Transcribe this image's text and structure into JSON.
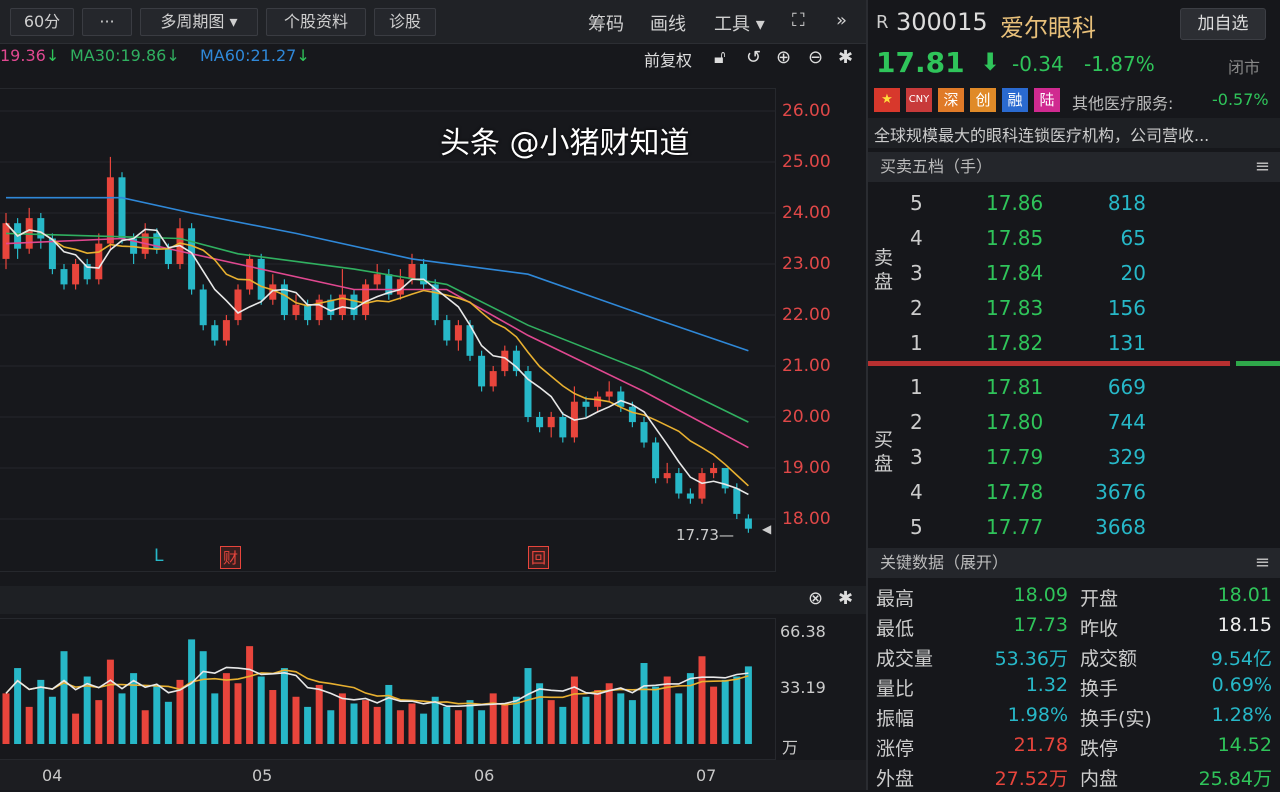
{
  "toolbar": {
    "period": "60分",
    "more": "···",
    "multi": "多周期图",
    "profile": "个股资料",
    "diagnose": "诊股",
    "chips": "筹码",
    "draw": "画线",
    "tools": "工具",
    "expand_icon": "fullscreen-icon",
    "collapse_icon": "double-chevron-right-icon"
  },
  "ma_legend": {
    "ma20": "19.36",
    "ma30": "MA30:19.86",
    "ma60": "MA60:21.27",
    "adjust": "前复权"
  },
  "colors": {
    "up": "#e8453c",
    "down": "#27b8c8",
    "ma5": "#e8e8e8",
    "ma10": "#e8b030",
    "ma20": "#e04890",
    "ma30": "#30b060",
    "ma60": "#2f88d8",
    "green": "#2fc45a"
  },
  "price_axis": [
    "26.00",
    "25.00",
    "24.00",
    "23.00",
    "22.00",
    "21.00",
    "20.00",
    "19.00",
    "18.00"
  ],
  "last_low_label": "17.73",
  "markers": {
    "l": "L",
    "cai": "财",
    "hui": "回"
  },
  "volume_axis": {
    "top": "66.38",
    "mid": "33.19",
    "unit": "万"
  },
  "date_axis": [
    "04",
    "05",
    "06",
    "07"
  ],
  "candles": [
    [
      23.1,
      23.8,
      24.0,
      22.9
    ],
    [
      23.8,
      23.3,
      23.9,
      23.1
    ],
    [
      23.3,
      23.9,
      24.1,
      23.2
    ],
    [
      23.9,
      23.5,
      24.0,
      23.3
    ],
    [
      23.5,
      22.9,
      23.6,
      22.8
    ],
    [
      22.9,
      22.6,
      23.0,
      22.5
    ],
    [
      22.6,
      23.0,
      23.1,
      22.5
    ],
    [
      23.0,
      22.7,
      23.1,
      22.6
    ],
    [
      22.7,
      23.4,
      23.6,
      22.6
    ],
    [
      23.4,
      24.7,
      25.1,
      23.3
    ],
    [
      24.7,
      23.5,
      24.8,
      23.4
    ],
    [
      23.5,
      23.2,
      23.6,
      23.0
    ],
    [
      23.2,
      23.6,
      23.8,
      23.1
    ],
    [
      23.6,
      23.3,
      23.7,
      23.2
    ],
    [
      23.3,
      23.0,
      23.4,
      22.9
    ],
    [
      23.0,
      23.7,
      23.9,
      22.9
    ],
    [
      23.7,
      22.5,
      23.8,
      22.4
    ],
    [
      22.5,
      21.8,
      22.6,
      21.7
    ],
    [
      21.8,
      21.5,
      21.9,
      21.4
    ],
    [
      21.5,
      21.9,
      22.0,
      21.4
    ],
    [
      21.9,
      22.5,
      22.6,
      21.8
    ],
    [
      22.5,
      23.1,
      23.2,
      22.4
    ],
    [
      23.1,
      22.3,
      23.2,
      22.2
    ],
    [
      22.3,
      22.6,
      22.8,
      22.2
    ],
    [
      22.6,
      22.0,
      22.7,
      21.9
    ],
    [
      22.0,
      22.2,
      22.4,
      21.9
    ],
    [
      22.2,
      21.9,
      22.3,
      21.8
    ],
    [
      21.9,
      22.3,
      22.4,
      21.8
    ],
    [
      22.3,
      22.0,
      22.4,
      21.9
    ],
    [
      22.0,
      22.4,
      22.9,
      21.9
    ],
    [
      22.4,
      22.0,
      22.5,
      21.9
    ],
    [
      22.0,
      22.6,
      22.7,
      21.9
    ],
    [
      22.6,
      22.8,
      23.0,
      22.5
    ],
    [
      22.8,
      22.4,
      22.9,
      22.3
    ],
    [
      22.4,
      22.7,
      22.9,
      22.3
    ],
    [
      22.7,
      23.0,
      23.2,
      22.6
    ],
    [
      23.0,
      22.6,
      23.1,
      22.5
    ],
    [
      22.6,
      21.9,
      22.7,
      21.8
    ],
    [
      21.9,
      21.5,
      22.0,
      21.4
    ],
    [
      21.5,
      21.8,
      21.9,
      21.3
    ],
    [
      21.8,
      21.2,
      21.9,
      21.1
    ],
    [
      21.2,
      20.6,
      21.3,
      20.5
    ],
    [
      20.6,
      20.9,
      21.0,
      20.5
    ],
    [
      20.9,
      21.3,
      21.4,
      20.8
    ],
    [
      21.3,
      20.9,
      21.4,
      20.8
    ],
    [
      20.9,
      20.0,
      21.0,
      19.9
    ],
    [
      20.0,
      19.8,
      20.1,
      19.7
    ],
    [
      19.8,
      20.0,
      20.1,
      19.6
    ],
    [
      20.0,
      19.6,
      20.1,
      19.5
    ],
    [
      19.6,
      20.3,
      20.6,
      19.5
    ],
    [
      20.3,
      20.2,
      20.4,
      20.0
    ],
    [
      20.2,
      20.4,
      20.5,
      20.1
    ],
    [
      20.4,
      20.5,
      20.7,
      20.3
    ],
    [
      20.5,
      20.2,
      20.6,
      20.1
    ],
    [
      20.2,
      19.9,
      20.3,
      19.8
    ],
    [
      19.9,
      19.5,
      20.0,
      19.4
    ],
    [
      19.5,
      18.8,
      19.6,
      18.7
    ],
    [
      18.8,
      18.9,
      19.1,
      18.7
    ],
    [
      18.9,
      18.5,
      19.0,
      18.4
    ],
    [
      18.5,
      18.4,
      18.6,
      18.3
    ],
    [
      18.4,
      18.9,
      19.0,
      18.3
    ],
    [
      18.9,
      19.0,
      19.1,
      18.8
    ],
    [
      19.0,
      18.6,
      19.0,
      18.5
    ],
    [
      18.6,
      18.1,
      18.7,
      18.0
    ],
    [
      18.01,
      17.81,
      18.09,
      17.73
    ]
  ],
  "volumes": [
    30,
    45,
    22,
    38,
    28,
    55,
    18,
    40,
    26,
    50,
    30,
    42,
    20,
    35,
    25,
    38,
    62,
    55,
    30,
    42,
    36,
    58,
    40,
    32,
    45,
    28,
    22,
    35,
    20,
    30,
    24,
    26,
    22,
    35,
    20,
    24,
    18,
    28,
    22,
    20,
    26,
    20,
    30,
    24,
    28,
    45,
    36,
    26,
    22,
    40,
    28,
    32,
    36,
    30,
    26,
    48,
    34,
    40,
    30,
    42,
    52,
    34,
    38,
    40,
    46
  ],
  "ma_lines": {
    "ma60": [
      [
        0,
        24.3
      ],
      [
        10,
        24.3
      ],
      [
        16,
        24.0
      ],
      [
        25,
        23.6
      ],
      [
        35,
        23.1
      ],
      [
        45,
        22.8
      ],
      [
        55,
        22.0
      ],
      [
        64,
        21.3
      ]
    ],
    "ma30": [
      [
        0,
        23.6
      ],
      [
        15,
        23.5
      ],
      [
        20,
        23.2
      ],
      [
        30,
        22.9
      ],
      [
        38,
        22.6
      ],
      [
        45,
        21.8
      ],
      [
        55,
        20.9
      ],
      [
        64,
        19.9
      ]
    ],
    "ma20": [
      [
        0,
        23.4
      ],
      [
        10,
        23.5
      ],
      [
        20,
        23.0
      ],
      [
        30,
        22.5
      ],
      [
        38,
        22.5
      ],
      [
        45,
        21.6
      ],
      [
        55,
        20.5
      ],
      [
        64,
        19.4
      ]
    ]
  },
  "stock": {
    "prefix": "R",
    "code": "300015",
    "name": "爱尔眼科",
    "add_watch": "加自选",
    "price": "17.81",
    "change": "-0.34",
    "pct": "-1.87%",
    "status": "闭市",
    "tags": [
      "CNY",
      "深",
      "创",
      "融",
      "陆"
    ],
    "sector": "其他医疗服务:",
    "sector_pct": "-0.57%",
    "desc": "全球规模最大的眼科连锁医疗机构，公司营收..."
  },
  "orderbook": {
    "title": "买卖五档（手）",
    "sell_label": "卖盘",
    "buy_label": "买盘",
    "sell": [
      {
        "lvl": "5",
        "price": "17.86",
        "vol": "818"
      },
      {
        "lvl": "4",
        "price": "17.85",
        "vol": "65"
      },
      {
        "lvl": "3",
        "price": "17.84",
        "vol": "20"
      },
      {
        "lvl": "2",
        "price": "17.83",
        "vol": "156"
      },
      {
        "lvl": "1",
        "price": "17.82",
        "vol": "131"
      }
    ],
    "buy": [
      {
        "lvl": "1",
        "price": "17.81",
        "vol": "669"
      },
      {
        "lvl": "2",
        "price": "17.80",
        "vol": "744"
      },
      {
        "lvl": "3",
        "price": "17.79",
        "vol": "329"
      },
      {
        "lvl": "4",
        "price": "17.78",
        "vol": "3676"
      },
      {
        "lvl": "5",
        "price": "17.77",
        "vol": "3668"
      }
    ]
  },
  "keydata": {
    "title": "关键数据（展开）",
    "rows": [
      {
        "l1": "最高",
        "v1": "18.09",
        "c1": "#2fc45a",
        "l2": "开盘",
        "v2": "18.01",
        "c2": "#2fc45a"
      },
      {
        "l1": "最低",
        "v1": "17.73",
        "c1": "#2fc45a",
        "l2": "昨收",
        "v2": "18.15",
        "c2": "#eeeeee"
      },
      {
        "l1": "成交量",
        "v1": "53.36万",
        "c1": "#27b8c8",
        "l2": "成交额",
        "v2": "9.54亿",
        "c2": "#27b8c8"
      },
      {
        "l1": "量比",
        "v1": "1.32",
        "c1": "#27b8c8",
        "l2": "换手",
        "v2": "0.69%",
        "c2": "#27b8c8"
      },
      {
        "l1": "振幅",
        "v1": "1.98%",
        "c1": "#27b8c8",
        "l2": "换手(实)",
        "v2": "1.28%",
        "c2": "#27b8c8"
      },
      {
        "l1": "涨停",
        "v1": "21.78",
        "c1": "#e8453c",
        "l2": "跌停",
        "v2": "14.52",
        "c2": "#2fc45a"
      },
      {
        "l1": "外盘",
        "v1": "27.52万",
        "c1": "#e8453c",
        "l2": "内盘",
        "v2": "25.84万",
        "c2": "#2fc45a"
      }
    ]
  },
  "watermark": "头条 @小猪财知道"
}
